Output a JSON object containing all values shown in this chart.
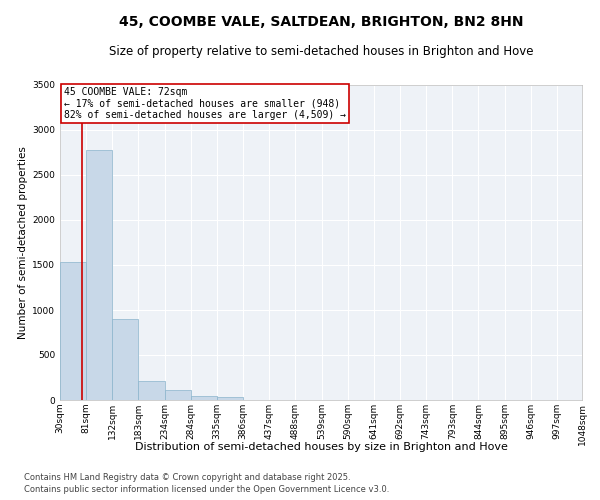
{
  "title": "45, COOMBE VALE, SALTDEAN, BRIGHTON, BN2 8HN",
  "subtitle": "Size of property relative to semi-detached houses in Brighton and Hove",
  "xlabel": "Distribution of semi-detached houses by size in Brighton and Hove",
  "ylabel": "Number of semi-detached properties",
  "bar_color": "#c8d8e8",
  "bar_edge_color": "#8ab4cc",
  "background_color": "#eef2f7",
  "grid_color": "#ffffff",
  "property_line_x": 72,
  "property_line_color": "#cc0000",
  "annotation_title": "45 COOMBE VALE: 72sqm",
  "annotation_line1": "← 17% of semi-detached houses are smaller (948)",
  "annotation_line2": "82% of semi-detached houses are larger (4,509) →",
  "bin_edges": [
    30,
    81,
    132,
    183,
    234,
    285,
    336,
    387,
    438,
    489,
    540,
    591,
    642,
    693,
    744,
    795,
    846,
    897,
    948,
    999,
    1048
  ],
  "bin_counts": [
    1530,
    2780,
    900,
    210,
    115,
    40,
    35,
    0,
    0,
    0,
    0,
    0,
    0,
    0,
    0,
    0,
    0,
    0,
    0,
    2
  ],
  "ylim": [
    0,
    3500
  ],
  "yticks": [
    0,
    500,
    1000,
    1500,
    2000,
    2500,
    3000,
    3500
  ],
  "xlim": [
    30,
    1048
  ],
  "xtick_labels": [
    "30sqm",
    "81sqm",
    "132sqm",
    "183sqm",
    "234sqm",
    "284sqm",
    "335sqm",
    "386sqm",
    "437sqm",
    "488sqm",
    "539sqm",
    "590sqm",
    "641sqm",
    "692sqm",
    "743sqm",
    "793sqm",
    "844sqm",
    "895sqm",
    "946sqm",
    "997sqm",
    "1048sqm"
  ],
  "footnote1": "Contains HM Land Registry data © Crown copyright and database right 2025.",
  "footnote2": "Contains public sector information licensed under the Open Government Licence v3.0.",
  "title_fontsize": 10,
  "subtitle_fontsize": 8.5,
  "xlabel_fontsize": 8,
  "ylabel_fontsize": 7.5,
  "tick_fontsize": 6.5,
  "footnote_fontsize": 6,
  "annotation_fontsize": 7
}
